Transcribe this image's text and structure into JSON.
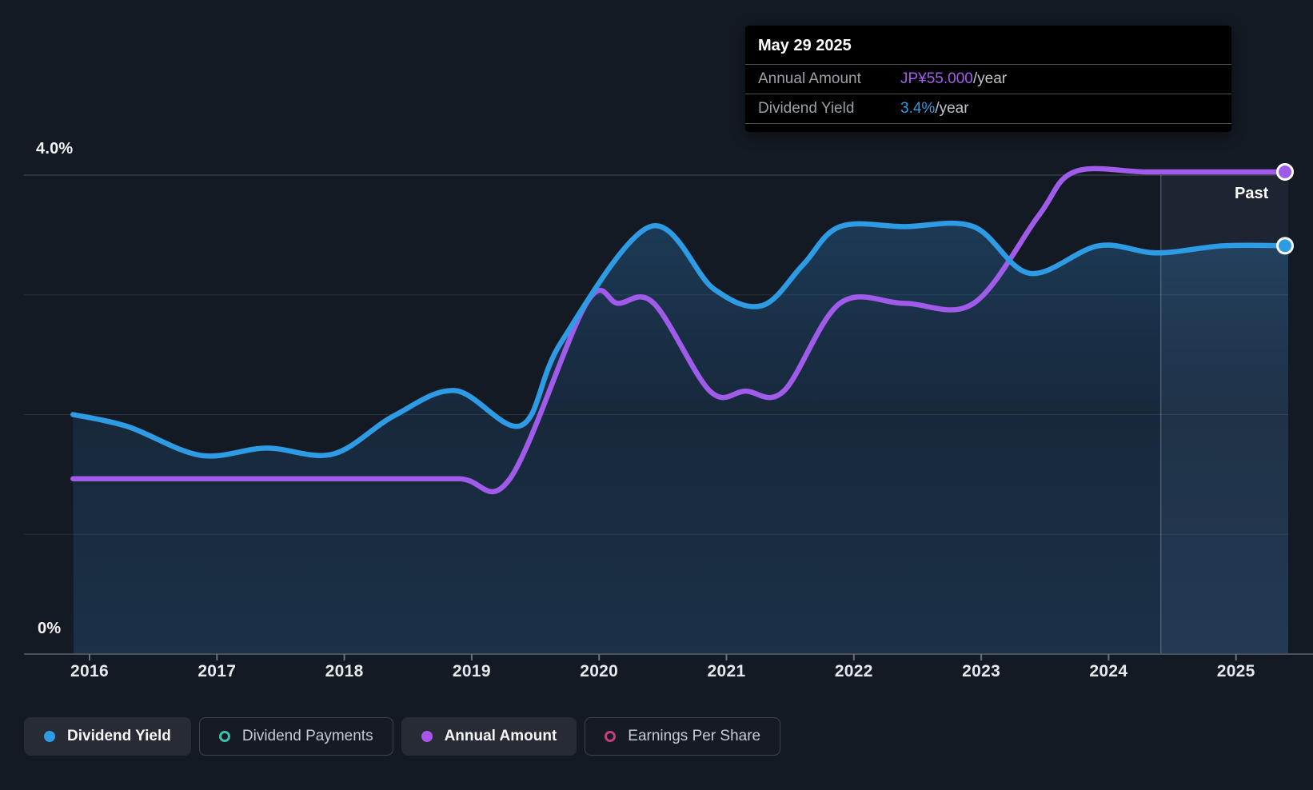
{
  "tooltip": {
    "date": "May 29 2025",
    "rows": [
      {
        "label": "Annual Amount",
        "value": "JP¥55.000",
        "suffix": "/year",
        "color": "#a55cec"
      },
      {
        "label": "Dividend Yield",
        "value": "3.4%",
        "suffix": "/year",
        "color": "#2f9be8"
      }
    ]
  },
  "labels": {
    "past": "Past",
    "y_axis_top": "4.0%",
    "y_axis_bottom": "0%"
  },
  "legend": {
    "items": [
      {
        "label": "Dividend Yield",
        "color": "#2e9be5",
        "marker": "filled",
        "active": true
      },
      {
        "label": "Dividend Payments",
        "color": "#3dbfad",
        "marker": "open",
        "active": false
      },
      {
        "label": "Annual Amount",
        "color": "#a855ec",
        "marker": "filled",
        "active": true
      },
      {
        "label": "Earnings Per Share",
        "color": "#c2407e",
        "marker": "open",
        "active": false
      }
    ]
  },
  "chart_data": {
    "type": "line",
    "title": "Dividend history (yield and annual amount)",
    "x_ticks": [
      2016,
      2017,
      2018,
      2019,
      2020,
      2021,
      2022,
      2023,
      2024,
      2025
    ],
    "x_range": [
      2015.87,
      2025.41
    ],
    "y_axis": {
      "unit": "percent",
      "range": [
        0,
        4
      ],
      "gridlines_pct": [
        1,
        2,
        3,
        4
      ],
      "top_label": "4.0%",
      "bottom_label": "0%",
      "grid": true
    },
    "amount_scale": {
      "amount": 55,
      "equals_pct": 4.027
    },
    "past_divider_year": 2024.41,
    "legend_position": "bottom",
    "series": [
      {
        "name": "Dividend Yield",
        "unit": "percent",
        "color": "#2e9be5",
        "area": true,
        "end_marker": true,
        "points": [
          [
            2015.87,
            2.0
          ],
          [
            2016.3,
            1.9
          ],
          [
            2016.87,
            1.66
          ],
          [
            2017.39,
            1.72
          ],
          [
            2017.91,
            1.67
          ],
          [
            2018.39,
            1.99
          ],
          [
            2018.87,
            2.2
          ],
          [
            2019.39,
            1.91
          ],
          [
            2019.7,
            2.6
          ],
          [
            2020.4,
            3.57
          ],
          [
            2020.9,
            3.05
          ],
          [
            2021.28,
            2.91
          ],
          [
            2021.6,
            3.25
          ],
          [
            2021.89,
            3.57
          ],
          [
            2022.4,
            3.57
          ],
          [
            2022.94,
            3.57
          ],
          [
            2023.38,
            3.18
          ],
          [
            2023.92,
            3.41
          ],
          [
            2024.38,
            3.35
          ],
          [
            2024.9,
            3.41
          ],
          [
            2025.41,
            3.41
          ]
        ]
      },
      {
        "name": "Annual Amount",
        "unit": "JP¥ per year",
        "color": "#a15bea",
        "area": false,
        "end_marker": true,
        "points": [
          [
            2015.87,
            20
          ],
          [
            2016.6,
            20
          ],
          [
            2017.4,
            20
          ],
          [
            2018.2,
            20
          ],
          [
            2018.9,
            20
          ],
          [
            2019.3,
            20
          ],
          [
            2019.9,
            40
          ],
          [
            2020.15,
            40
          ],
          [
            2020.43,
            40
          ],
          [
            2020.87,
            30
          ],
          [
            2021.15,
            30
          ],
          [
            2021.45,
            30
          ],
          [
            2021.89,
            40
          ],
          [
            2022.4,
            40
          ],
          [
            2022.94,
            40
          ],
          [
            2023.45,
            50
          ],
          [
            2023.73,
            55
          ],
          [
            2024.3,
            55
          ],
          [
            2024.9,
            55
          ],
          [
            2025.41,
            55
          ]
        ]
      }
    ]
  }
}
